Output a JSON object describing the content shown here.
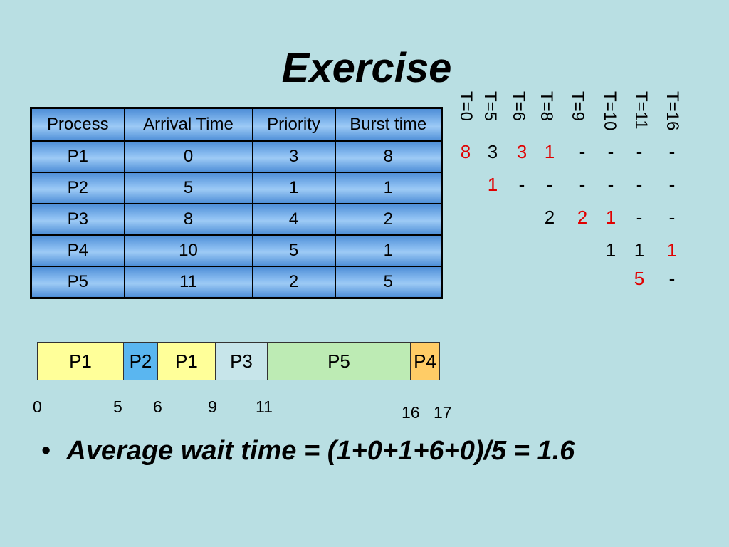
{
  "title": "Exercise",
  "table": {
    "headers": [
      "Process",
      "Arrival Time",
      "Priority",
      "Burst time"
    ],
    "rows": [
      [
        "P1",
        "0",
        "3",
        "8"
      ],
      [
        "P2",
        "5",
        "1",
        "1"
      ],
      [
        "P3",
        "8",
        "4",
        "2"
      ],
      [
        "P4",
        "10",
        "5",
        "1"
      ],
      [
        "P5",
        "11",
        "2",
        "5"
      ]
    ]
  },
  "time_table": {
    "headers": [
      "T=0",
      "T=5",
      "T=6",
      "T=8",
      "T=9",
      "T=10",
      "T=11",
      "T=16"
    ],
    "rows": [
      [
        "8",
        "3",
        "3",
        "1",
        "-",
        "-",
        "-",
        "-"
      ],
      [
        "",
        "1",
        "-",
        "-",
        "-",
        "-",
        "-",
        "-"
      ],
      [
        "",
        "",
        "",
        "2",
        "2",
        "1",
        "-",
        "-"
      ],
      [
        "",
        "",
        "",
        "",
        "",
        "1",
        "1",
        "1"
      ],
      [
        "",
        "",
        "",
        "",
        "",
        "",
        "5",
        "-"
      ]
    ],
    "red_cells": [
      "0.0",
      "0.2",
      "0.3",
      "1.1",
      "2.4",
      "2.5",
      "3.7",
      "4.6"
    ],
    "highlight_color": "#e00000"
  },
  "gantt": {
    "segments": [
      {
        "label": "P1",
        "color": "#ffff99"
      },
      {
        "label": "P2",
        "color": "#5ab6f0"
      },
      {
        "label": "P1",
        "color": "#ffff99"
      },
      {
        "label": "P3",
        "color": "#c7e5ea"
      },
      {
        "label": "P5",
        "color": "#bdebb4"
      },
      {
        "label": "P4",
        "color": "#ffcc66"
      }
    ],
    "ticks": [
      "0",
      "5",
      "6",
      "9",
      "11",
      "16",
      "17"
    ]
  },
  "bullet": "Average wait time = (1+0+1+6+0)/5 = 1.6"
}
